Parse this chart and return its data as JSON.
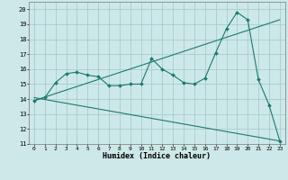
{
  "xlabel": "Humidex (Indice chaleur)",
  "background_color": "#cde8e8",
  "grid_color": "#aacccc",
  "line_color": "#1a7a6e",
  "xlim": [
    -0.5,
    23.5
  ],
  "ylim": [
    11,
    20.5
  ],
  "yticks": [
    11,
    12,
    13,
    14,
    15,
    16,
    17,
    18,
    19,
    20
  ],
  "xticks": [
    0,
    1,
    2,
    3,
    4,
    5,
    6,
    7,
    8,
    9,
    10,
    11,
    12,
    13,
    14,
    15,
    16,
    17,
    18,
    19,
    20,
    21,
    22,
    23
  ],
  "curve1_x": [
    0,
    1,
    2,
    3,
    4,
    5,
    6,
    7,
    8,
    9,
    10,
    11,
    12,
    13,
    14,
    15,
    16,
    17,
    18,
    19,
    20,
    21,
    22,
    23
  ],
  "curve1_y": [
    13.9,
    14.1,
    15.1,
    15.7,
    15.8,
    15.6,
    15.5,
    14.9,
    14.9,
    15.0,
    15.0,
    16.7,
    16.0,
    15.6,
    15.1,
    15.0,
    15.4,
    17.1,
    18.7,
    19.8,
    19.3,
    15.3,
    13.6,
    11.2
  ],
  "trend1_x": [
    0,
    23
  ],
  "trend1_y": [
    13.9,
    19.3
  ],
  "trend2_x": [
    0,
    23
  ],
  "trend2_y": [
    14.1,
    11.2
  ]
}
